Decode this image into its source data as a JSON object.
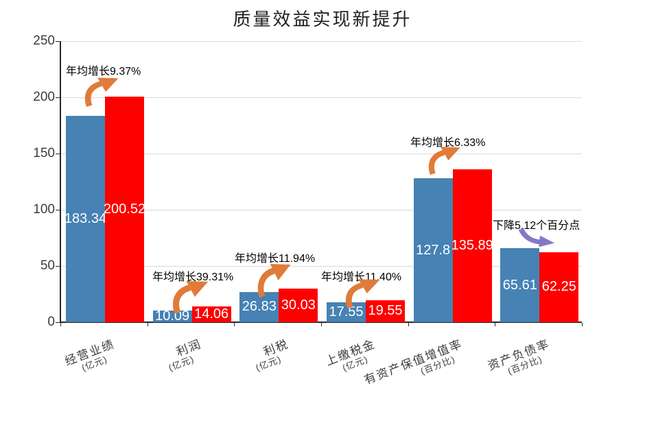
{
  "title": "质量效益实现新提升",
  "colors": {
    "series_blue": "#4682B4",
    "series_red": "#FE0000",
    "growth_arrow": "#E07B39",
    "decline_arrow": "#8678C6",
    "gridline": "#D9D9D9",
    "axis": "#262626",
    "bar_label_text": "#FFFFFF"
  },
  "chart_data": {
    "type": "bar",
    "title": "质量效益实现新提升",
    "categories": [
      {
        "name": "经营业绩",
        "unit": "(亿元)"
      },
      {
        "name": "利润",
        "unit": "(亿元)"
      },
      {
        "name": "利税",
        "unit": "(亿元)"
      },
      {
        "name": "上缴税金",
        "unit": "(亿元)"
      },
      {
        "name": "有资产保值增值率",
        "unit": "(百分比)"
      },
      {
        "name": "资产负债率",
        "unit": "(百分比)"
      }
    ],
    "series": [
      {
        "color": "#4682B4",
        "values": [
          183.34,
          10.09,
          26.83,
          17.55,
          127.8,
          65.61
        ],
        "labels": [
          "183.34",
          "10.09",
          "26.83",
          "17.55",
          "127.8",
          "65.61"
        ]
      },
      {
        "color": "#FE0000",
        "values": [
          200.52,
          14.06,
          30.03,
          19.55,
          135.89,
          62.25
        ],
        "labels": [
          "200.52",
          "14.06",
          "30.03",
          "19.55",
          "135.89",
          "62.25"
        ]
      }
    ],
    "annotations": [
      {
        "label": "年均增长9.37%",
        "direction": "up"
      },
      {
        "label": "年均增长39.31%",
        "direction": "up"
      },
      {
        "label": "年均增长11.94%",
        "direction": "up"
      },
      {
        "label": "年均增长11.40%",
        "direction": "up"
      },
      {
        "label": "年均增长6.33%",
        "direction": "up"
      },
      {
        "label": "下降5.12个百分点",
        "direction": "down"
      }
    ],
    "y_axis": {
      "min": 0,
      "max": 250,
      "step": 50,
      "tick_labels": [
        "0",
        "50",
        "100",
        "150",
        "200",
        "250"
      ]
    },
    "ylim": [
      0,
      250
    ],
    "grid": true,
    "legend": false
  }
}
